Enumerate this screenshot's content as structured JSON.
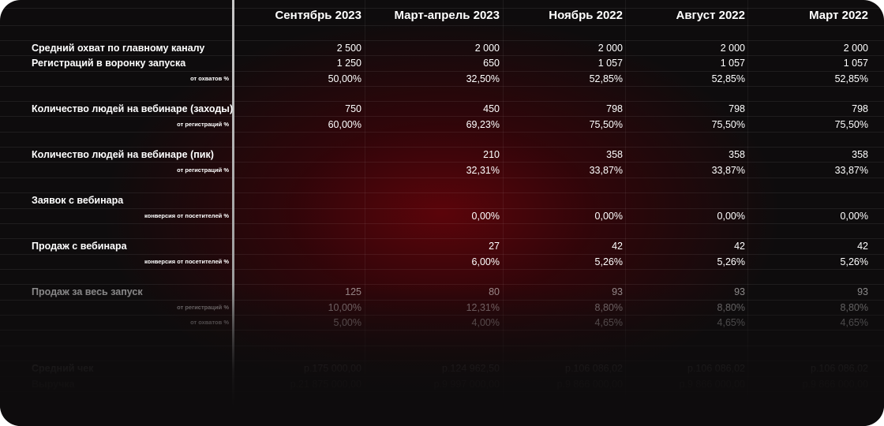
{
  "columns": [
    "Сентябрь 2023",
    "Март-апрель 2023",
    "Ноябрь 2022",
    "Август 2022",
    "Март 2022"
  ],
  "rows": [
    {
      "label": "Средний охват по главному каналу",
      "kind": "main",
      "values": [
        "2 500",
        "2 000",
        "2 000",
        "2 000",
        "2 000"
      ]
    },
    {
      "label": "Регистраций в воронку запуска",
      "kind": "main",
      "values": [
        "1 250",
        "650",
        "1 057",
        "1 057",
        "1 057"
      ]
    },
    {
      "label": "от охватов %",
      "kind": "sub",
      "values": [
        "50,00%",
        "32,50%",
        "52,85%",
        "52,85%",
        "52,85%"
      ]
    },
    {
      "label": "Количество людей на вебинаре (заходы)",
      "kind": "main",
      "values": [
        "750",
        "450",
        "798",
        "798",
        "798"
      ]
    },
    {
      "label": "от регистраций %",
      "kind": "sub",
      "values": [
        "60,00%",
        "69,23%",
        "75,50%",
        "75,50%",
        "75,50%"
      ]
    },
    {
      "label": "Количество людей на вебинаре (пик)",
      "kind": "main",
      "values": [
        "",
        "210",
        "358",
        "358",
        "358"
      ]
    },
    {
      "label": "от регистраций %",
      "kind": "sub",
      "values": [
        "",
        "32,31%",
        "33,87%",
        "33,87%",
        "33,87%"
      ]
    },
    {
      "label": "Заявок с вебинара",
      "kind": "main",
      "values": [
        "",
        "",
        "",
        "",
        ""
      ]
    },
    {
      "label": "конверсия от посетителей %",
      "kind": "sub",
      "values": [
        "",
        "0,00%",
        "0,00%",
        "0,00%",
        "0,00%"
      ]
    },
    {
      "label": "Продаж с вебинара",
      "kind": "main",
      "values": [
        "",
        "27",
        "42",
        "42",
        "42"
      ]
    },
    {
      "label": "конверсия от посетителей %",
      "kind": "sub",
      "values": [
        "",
        "6,00%",
        "5,26%",
        "5,26%",
        "5,26%"
      ]
    },
    {
      "label": "Продаж за весь запуск",
      "kind": "main",
      "values": [
        "125",
        "80",
        "93",
        "93",
        "93"
      ]
    },
    {
      "label": "от регистраций %",
      "kind": "sub",
      "values": [
        "10,00%",
        "12,31%",
        "8,80%",
        "8,80%",
        "8,80%"
      ]
    },
    {
      "label": "от охватов %",
      "kind": "sub",
      "values": [
        "5,00%",
        "4,00%",
        "4,65%",
        "4,65%",
        "4,65%"
      ]
    },
    {
      "label": "Средний чек",
      "kind": "main",
      "values": [
        "р.175 000,00",
        "р.124 962,50",
        "р.106 086,02",
        "р.106 086,02",
        "р.106 086,02"
      ]
    },
    {
      "label": "Выручка",
      "kind": "main",
      "values": [
        "р.21 875 000,00",
        "р.9 997 000,00",
        "р.9 866 000,00",
        "р.9 866 000,00",
        "р.9 866 000,00"
      ]
    }
  ]
}
